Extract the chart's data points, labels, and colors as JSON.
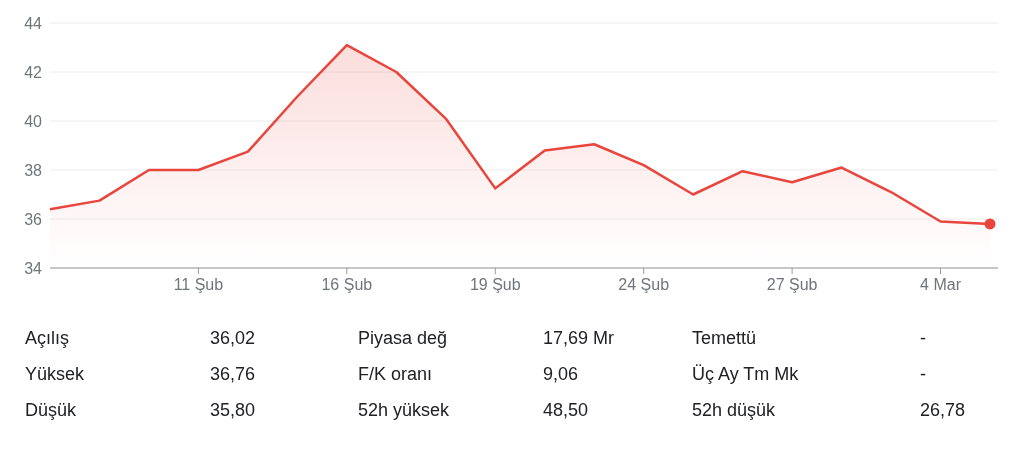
{
  "chart_data": {
    "type": "area",
    "categories": [
      null,
      null,
      null,
      "11 Şub",
      null,
      null,
      "16 Şub",
      null,
      null,
      "19 Şub",
      null,
      null,
      "24 Şub",
      null,
      null,
      "27 Şub",
      null,
      null,
      "4 Mar",
      null
    ],
    "series": [
      {
        "color": "#e8453c",
        "values": [
          36.4,
          36.75,
          38.0,
          38.0,
          38.75,
          41.0,
          43.1,
          42.0,
          40.1,
          37.25,
          38.8,
          39.05,
          38.2,
          37.0,
          37.95,
          37.5,
          38.1,
          37.1,
          35.9,
          35.8
        ]
      },
      {
        "type": "scatter",
        "marker": "circle",
        "color": "#e8453c",
        "values": [
          null,
          null,
          null,
          null,
          null,
          null,
          null,
          null,
          null,
          null,
          null,
          null,
          null,
          null,
          null,
          null,
          null,
          null,
          null,
          35.8
        ]
      }
    ],
    "ylim": [
      34,
      44
    ],
    "yticks": [
      34,
      36,
      38,
      40,
      42,
      44
    ],
    "grid": "y",
    "annotations": [
      "Açılış",
      "36,02",
      "Piyasa değ",
      "17,69 Mr",
      "Temettü",
      "-",
      "Yüksek",
      "36,76",
      "F/K oranı",
      "9,06",
      "Üç Ay Tm Mk",
      "-",
      "Düşük",
      "35,80",
      "52h yüksek",
      "48,50",
      "52h düşük",
      "26,78"
    ]
  }
}
